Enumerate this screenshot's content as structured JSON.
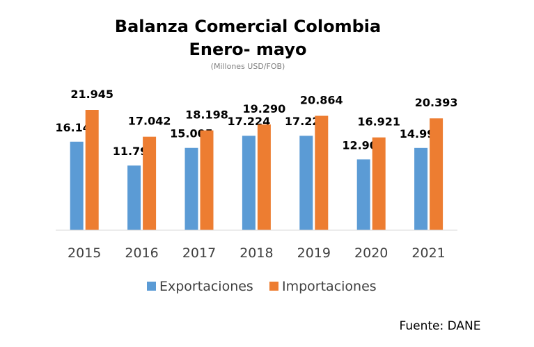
{
  "chart_data": {
    "type": "bar",
    "title": "Balanza Comercial Colombia",
    "title_line2": "Enero- mayo",
    "subtitle": "(Millones USD/FOB)",
    "categories": [
      "2015",
      "2016",
      "2017",
      "2018",
      "2019",
      "2020",
      "2021"
    ],
    "series": [
      {
        "name": "Exportaciones",
        "color": "#5b9bd5",
        "values": [
          16141,
          11798,
          15005,
          17224,
          17223,
          12903,
          14996
        ],
        "labels": [
          "16.141",
          "11.798",
          "15.005",
          "17.224",
          "17.223",
          "12.903",
          "14.996"
        ]
      },
      {
        "name": "Importaciones",
        "color": "#ed7d31",
        "values": [
          21945,
          17042,
          18198,
          19290,
          20864,
          16921,
          20393
        ],
        "labels": [
          "21.945",
          "17.042",
          "18.198",
          "19.290",
          "20.864",
          "16.921",
          "20.393"
        ]
      }
    ],
    "ylim": [
      0,
      22000
    ],
    "grid": false,
    "legend_position": "bottom",
    "source": "Fuente: DANE"
  }
}
